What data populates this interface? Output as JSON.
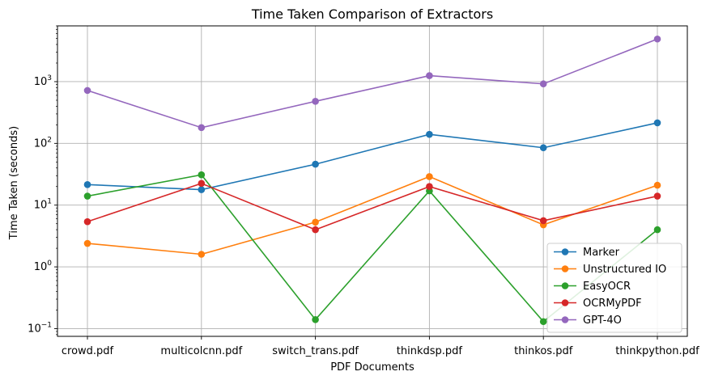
{
  "chart_data": {
    "type": "line",
    "title": "Time Taken Comparison of Extractors",
    "xlabel": "PDF Documents",
    "ylabel": "Time Taken (seconds)",
    "yscale": "log",
    "ylim": [
      0.075,
      8000
    ],
    "grid": true,
    "legend_position": "lower-right",
    "categories": [
      "crowd.pdf",
      "multicolcnn.pdf",
      "switch_trans.pdf",
      "thinkdsp.pdf",
      "thinkos.pdf",
      "thinkpython.pdf"
    ],
    "yticks": [
      {
        "value": 0.1,
        "base": "10",
        "exp": "−1"
      },
      {
        "value": 1,
        "base": "10",
        "exp": "0"
      },
      {
        "value": 10,
        "base": "10",
        "exp": "1"
      },
      {
        "value": 100,
        "base": "10",
        "exp": "2"
      },
      {
        "value": 1000,
        "base": "10",
        "exp": "3"
      }
    ],
    "series": [
      {
        "name": "Marker",
        "color": "#1f77b4",
        "values": [
          21.5,
          17.8,
          46,
          140,
          85,
          215
        ]
      },
      {
        "name": "Unstructured IO",
        "color": "#ff7f0e",
        "values": [
          2.4,
          1.6,
          5.3,
          29,
          4.8,
          21
        ]
      },
      {
        "name": "EasyOCR",
        "color": "#2ca02c",
        "values": [
          14,
          31,
          0.14,
          17,
          0.13,
          4
        ]
      },
      {
        "name": "OCRMyPDF",
        "color": "#d62728",
        "values": [
          5.4,
          22.5,
          4.0,
          20,
          5.6,
          14
        ]
      },
      {
        "name": "GPT-4O",
        "color": "#9467bd",
        "values": [
          720,
          180,
          480,
          1250,
          920,
          4900
        ]
      }
    ]
  }
}
